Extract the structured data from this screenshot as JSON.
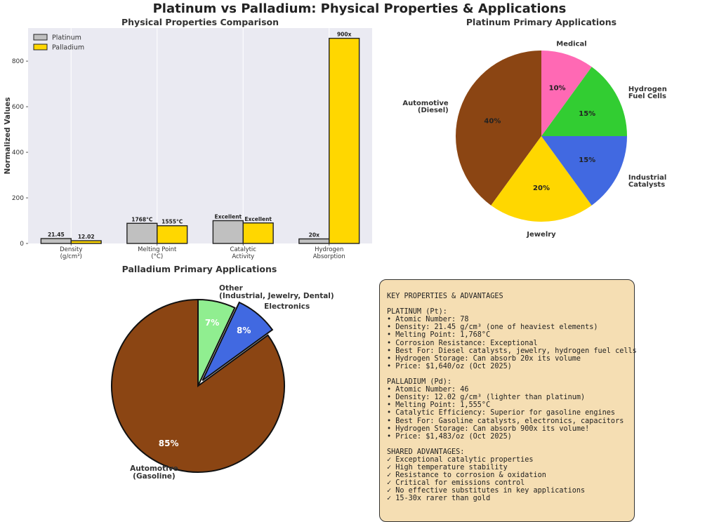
{
  "figure": {
    "title": "Platinum vs Palladium: Physical Properties & Applications"
  },
  "colors": {
    "platinum": "#c0c0c0",
    "palladium": "#ffd700",
    "plot_bg": "#eaeaf2"
  },
  "chart_data": [
    {
      "type": "bar",
      "title": "Physical Properties Comparison",
      "xlabel": "",
      "ylabel": "Normalized Values",
      "ylim": [
        0,
        945
      ],
      "yticks": [
        0,
        200,
        400,
        600,
        800
      ],
      "categories": [
        "Density\n(g/cm³)",
        "Melting Point\n(°C)",
        "Catalytic\nActivity",
        "Hydrogen\nAbsorption"
      ],
      "legend": "top-left",
      "series": [
        {
          "name": "Platinum",
          "color": "#c0c0c0",
          "values": [
            21.45,
            88.4,
            100,
            20
          ],
          "labels": [
            "21.45",
            "1768°C",
            "Excellent",
            "20x"
          ]
        },
        {
          "name": "Palladium",
          "color": "#ffd700",
          "values": [
            12.02,
            77.75,
            90,
            900
          ],
          "labels": [
            "12.02",
            "1555°C",
            "Excellent",
            "900x"
          ]
        }
      ]
    },
    {
      "type": "pie",
      "title": "Platinum Primary Applications",
      "labels": [
        "Automotive\n(Diesel)",
        "Jewelry",
        "Industrial\nCatalysts",
        "Hydrogen\nFuel Cells",
        "Medical"
      ],
      "values": [
        40,
        20,
        15,
        15,
        10
      ],
      "pct_labels": [
        "40%",
        "20%",
        "15%",
        "15%",
        "10%"
      ],
      "colors": [
        "#8b4513",
        "#ffd700",
        "#4169e1",
        "#32cd32",
        "#ff69b4"
      ]
    },
    {
      "type": "pie",
      "title": "Palladium Primary Applications",
      "labels": [
        "Automotive\n(Gasoline)",
        "Electronics",
        "Other\n(Industrial, Jewelry, Dental)"
      ],
      "values": [
        85,
        8,
        7
      ],
      "pct_labels": [
        "85%",
        "8%",
        "7%"
      ],
      "colors": [
        "#8b4513",
        "#4169e1",
        "#90ee90"
      ],
      "exploded": [
        false,
        true,
        false
      ]
    }
  ],
  "info_box": {
    "lines": [
      "KEY PROPERTIES & ADVANTAGES",
      "",
      "PLATINUM (Pt):",
      "• Atomic Number: 78",
      "• Density: 21.45 g/cm³ (one of heaviest elements)",
      "• Melting Point: 1,768°C",
      "• Corrosion Resistance: Exceptional",
      "• Best For: Diesel catalysts, jewelry, hydrogen fuel cells",
      "• Hydrogen Storage: Can absorb 20x its volume",
      "• Price: $1,640/oz (Oct 2025)",
      "",
      "PALLADIUM (Pd):",
      "• Atomic Number: 46",
      "• Density: 12.02 g/cm³ (lighter than platinum)",
      "• Melting Point: 1,555°C",
      "• Catalytic Efficiency: Superior for gasoline engines",
      "• Best For: Gasoline catalysts, electronics, capacitors",
      "• Hydrogen Storage: Can absorb 900x its volume!",
      "• Price: $1,483/oz (Oct 2025)",
      "",
      "SHARED ADVANTAGES:",
      "✓ Exceptional catalytic properties",
      "✓ High temperature stability",
      "✓ Resistance to corrosion & oxidation",
      "✓ Critical for emissions control",
      "✓ No effective substitutes in key applications",
      "✓ 15-30x rarer than gold"
    ]
  }
}
